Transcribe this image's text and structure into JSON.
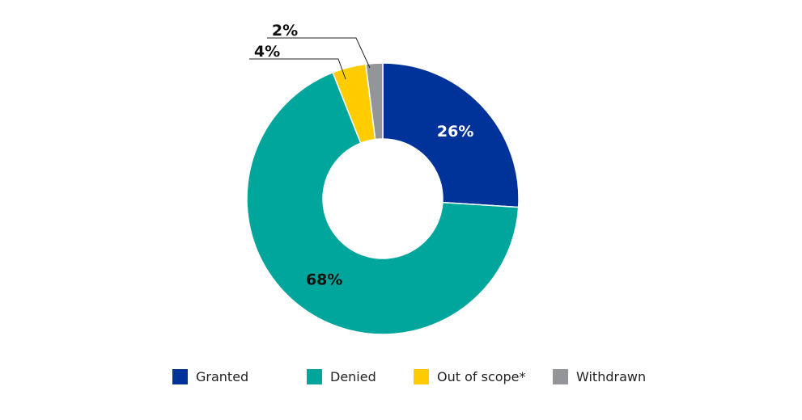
{
  "chart_data": {
    "type": "pie",
    "variant": "donut",
    "title": "",
    "slices": [
      {
        "name": "Granted",
        "value": 26,
        "label": "26%",
        "color": "#003399",
        "label_color": "#ffffff",
        "label_placement": "inside"
      },
      {
        "name": "Denied",
        "value": 68,
        "label": "68%",
        "color": "#00A59B",
        "label_color": "#111111",
        "label_placement": "inside"
      },
      {
        "name": "Out of scope*",
        "value": 4,
        "label": "4%",
        "color": "#FFCC00",
        "label_color": "#111111",
        "label_placement": "callout"
      },
      {
        "name": "Withdrawn",
        "value": 2,
        "label": "2%",
        "color": "#939598",
        "label_color": "#111111",
        "label_placement": "callout"
      }
    ],
    "legend": {
      "position": "bottom",
      "items": [
        {
          "name": "Granted",
          "color": "#003399"
        },
        {
          "name": "Denied",
          "color": "#00A59B"
        },
        {
          "name": "Out of scope*",
          "color": "#FFCC00"
        },
        {
          "name": "Withdrawn",
          "color": "#939598"
        }
      ]
    }
  }
}
